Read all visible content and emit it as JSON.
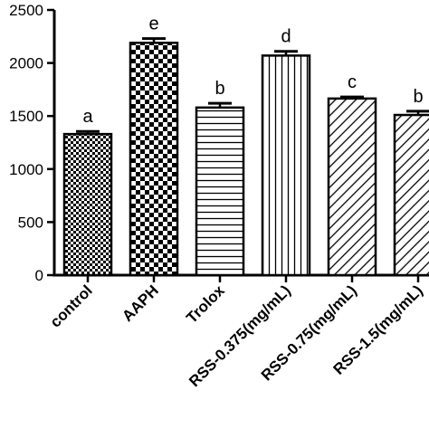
{
  "chart_data": {
    "type": "bar",
    "title": "",
    "xlabel": "",
    "ylabel": "",
    "ylim": [
      0,
      2500
    ],
    "yticks": [
      0,
      500,
      1000,
      1500,
      2000,
      2500
    ],
    "grid": false,
    "categories": [
      "control",
      "AAPH",
      "Trolox",
      "RSS-0.375(mg/mL)",
      "RSS-0.75(mg/mL)",
      "RSS-1.5(mg/mL)"
    ],
    "values": [
      1330,
      2190,
      1580,
      2070,
      1665,
      1510
    ],
    "errors": [
      25,
      40,
      40,
      40,
      15,
      35
    ],
    "significance": [
      "a",
      "e",
      "b",
      "d",
      "c",
      "b"
    ],
    "patterns": [
      "fine-checker",
      "coarse-checker",
      "horizontal-lines",
      "vertical-lines",
      "diagonal-lines",
      "diagonal-lines"
    ]
  }
}
